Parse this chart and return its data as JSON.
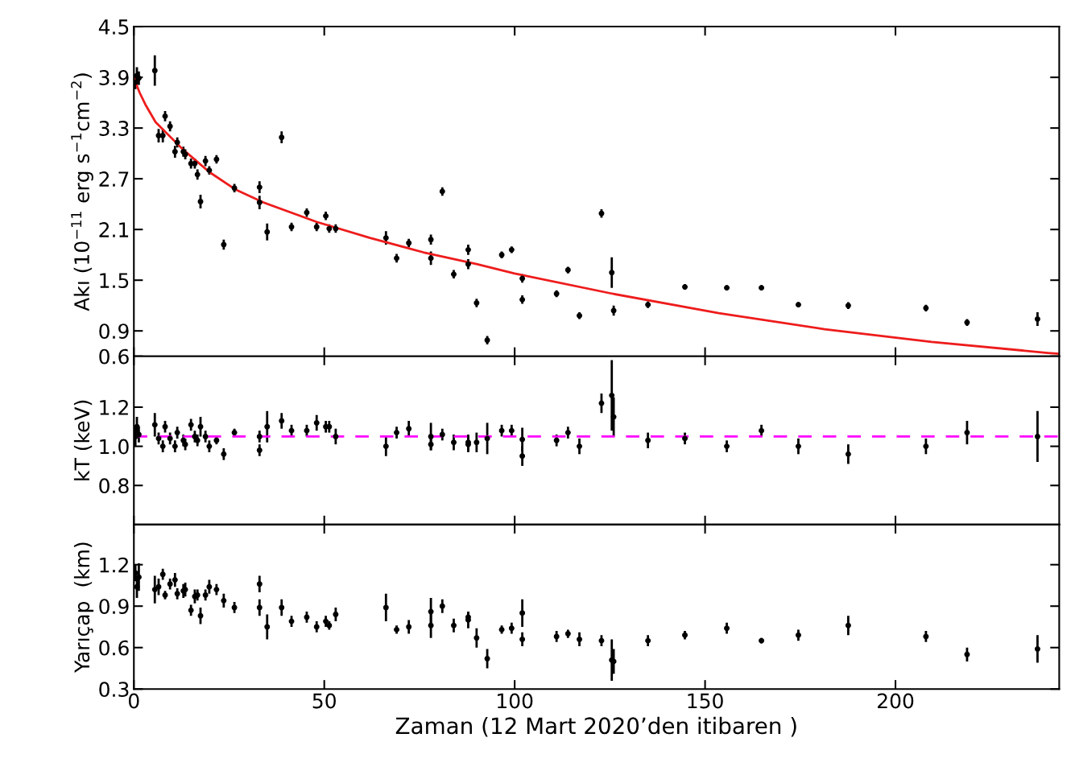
{
  "chart_data": [
    {
      "type": "scatter",
      "ylabel": "Akı (10$^{−11}$ erg s$^{−1}$cm$^{−2}$)",
      "xlim": [
        0,
        243
      ],
      "xticks": [
        0,
        50,
        100,
        150,
        200
      ],
      "ylim": [
        0.6,
        4.5
      ],
      "yticks": [
        0.6,
        0.9,
        1.5,
        2.1,
        2.7,
        3.3,
        3.9,
        4.5
      ],
      "tick_labels": "y",
      "marker": "circle",
      "series": [
        {
          "color": "#000000",
          "x": [
            0.4,
            0.8,
            1.3,
            5.5,
            6.5,
            7.6,
            8.2,
            9.5,
            10.8,
            11.4,
            13,
            13.5,
            15,
            16,
            16.7,
            17.5,
            18.8,
            19.8,
            21.7,
            23.6,
            26.4,
            33,
            33,
            35,
            38.8,
            41.4,
            45.4,
            48,
            50.4,
            51.3,
            53,
            66.2,
            69,
            72.2,
            78,
            78,
            81,
            84,
            87.8,
            87.8,
            90,
            92.8,
            96.6,
            99.2,
            102,
            102,
            111,
            114,
            117,
            122.8,
            125.5,
            126,
            135,
            144.7,
            155.7,
            164.8,
            174.5,
            187.6,
            208,
            218.8,
            237.3
          ],
          "values": [
            3.84,
            3.92,
            3.89,
            3.98,
            3.21,
            3.21,
            3.44,
            3.32,
            3.02,
            3.13,
            3.02,
            2.99,
            2.88,
            2.88,
            2.75,
            2.43,
            2.91,
            2.8,
            2.93,
            1.92,
            2.59,
            2.6,
            2.42,
            2.07,
            3.19,
            2.13,
            2.3,
            2.13,
            2.26,
            2.11,
            2.11,
            2.0,
            1.76,
            1.94,
            1.98,
            1.76,
            2.55,
            1.57,
            1.86,
            1.69,
            1.23,
            0.79,
            1.8,
            1.86,
            1.52,
            1.27,
            1.34,
            1.62,
            1.08,
            2.29,
            1.59,
            1.14,
            1.21,
            1.42,
            1.41,
            1.41,
            1.21,
            1.2,
            1.17,
            1.0,
            1.04
          ],
          "errors": [
            0.08,
            0.1,
            0.08,
            0.18,
            0.08,
            0.08,
            0.06,
            0.06,
            0.07,
            0.06,
            0.06,
            0.06,
            0.06,
            0.06,
            0.06,
            0.08,
            0.06,
            0.05,
            0.05,
            0.06,
            0.05,
            0.07,
            0.08,
            0.1,
            0.07,
            0.05,
            0.05,
            0.05,
            0.05,
            0.05,
            0.05,
            0.08,
            0.05,
            0.05,
            0.06,
            0.08,
            0.05,
            0.05,
            0.06,
            0.06,
            0.05,
            0.05,
            0.04,
            0.04,
            0.05,
            0.05,
            0.04,
            0.04,
            0.04,
            0.05,
            0.18,
            0.06,
            0.04,
            0.03,
            0.03,
            0.03,
            0.03,
            0.04,
            0.04,
            0.04,
            0.08
          ]
        },
        {
          "type": "line",
          "marker": "none",
          "color": "#ee1c1c",
          "x": [
            0,
            0.2,
            1.5,
            3,
            5.7,
            12.8,
            19.8,
            26.8,
            34,
            48,
            62,
            76,
            90,
            100,
            125.7,
            153.6,
            181.4,
            209.5,
            240,
            243
          ],
          "values": [
            3.9,
            3.87,
            3.72,
            3.58,
            3.37,
            3.05,
            2.78,
            2.57,
            2.42,
            2.19,
            2.0,
            1.83,
            1.69,
            1.58,
            1.34,
            1.11,
            0.92,
            0.77,
            0.64,
            0.63
          ]
        }
      ]
    },
    {
      "type": "scatter",
      "ylabel": "kT (keV)",
      "xlim": [
        0,
        243
      ],
      "xticks": [
        0,
        50,
        100,
        150,
        200
      ],
      "ylim": [
        0.6,
        1.46
      ],
      "yticks": [
        0.8,
        {
          "value": 1.0,
          "label": "1.0"
        },
        1.2
      ],
      "tick_labels": "y",
      "marker": "circle",
      "ref_lines": [
        {
          "axis": "y",
          "value": 1.05,
          "color": "#ff00ff",
          "line_style": "dashed"
        }
      ],
      "series": [
        {
          "color": "#000000",
          "x": [
            0.4,
            0.8,
            1.3,
            5.5,
            6.5,
            7.6,
            8.2,
            9.5,
            10.8,
            11.4,
            13,
            13.5,
            15,
            16,
            16.7,
            17.5,
            18.8,
            19.8,
            21.7,
            23.6,
            26.4,
            33,
            33,
            35,
            38.8,
            41.4,
            45.4,
            48,
            50.4,
            51.3,
            53,
            66.2,
            69,
            72.2,
            78,
            78,
            81,
            84,
            87.8,
            87.8,
            90,
            92.8,
            96.6,
            99.2,
            102,
            102,
            111,
            114,
            117,
            122.8,
            125.5,
            126,
            135,
            144.7,
            155.7,
            164.8,
            174.5,
            187.6,
            208,
            218.8,
            237.3
          ],
          "values": [
            1.05,
            1.1,
            1.06,
            1.11,
            1.04,
            1.0,
            1.1,
            1.04,
            1.0,
            1.07,
            1.03,
            1.01,
            1.11,
            1.05,
            1.03,
            1.1,
            1.05,
            1.0,
            1.03,
            0.96,
            1.07,
            1.05,
            0.98,
            1.1,
            1.13,
            1.08,
            1.08,
            1.12,
            1.1,
            1.1,
            1.05,
            1.0,
            1.07,
            1.09,
            1.05,
            1.01,
            1.06,
            1.02,
            1.02,
            1.01,
            1.02,
            1.04,
            1.08,
            1.08,
            1.035,
            0.95,
            1.03,
            1.07,
            1.0,
            1.22,
            1.26,
            1.15,
            1.03,
            1.04,
            1.0,
            1.08,
            1.0,
            0.96,
            1.0,
            1.07,
            1.05
          ],
          "errors": [
            0.05,
            0.05,
            0.04,
            0.06,
            0.03,
            0.03,
            0.03,
            0.03,
            0.03,
            0.03,
            0.03,
            0.03,
            0.03,
            0.03,
            0.03,
            0.05,
            0.03,
            0.03,
            0.02,
            0.03,
            0.02,
            0.03,
            0.03,
            0.08,
            0.04,
            0.03,
            0.03,
            0.04,
            0.03,
            0.03,
            0.04,
            0.05,
            0.03,
            0.04,
            0.07,
            0.03,
            0.03,
            0.04,
            0.04,
            0.04,
            0.05,
            0.08,
            0.03,
            0.03,
            0.06,
            0.05,
            0.03,
            0.03,
            0.04,
            0.05,
            0.18,
            0.1,
            0.04,
            0.03,
            0.03,
            0.03,
            0.04,
            0.05,
            0.04,
            0.06,
            0.13
          ]
        }
      ]
    },
    {
      "type": "scatter",
      "ylabel": "Yarıçap  (km)",
      "xlabel": "Zaman (12 Mart 2020’den itibaren )",
      "xlim": [
        0,
        243
      ],
      "xticks": [
        0,
        50,
        100,
        150,
        200
      ],
      "ylim": [
        0.3,
        1.49
      ],
      "yticks": [
        0.3,
        0.6,
        0.9,
        1.2
      ],
      "marker": "circle",
      "series": [
        {
          "color": "#000000",
          "x": [
            0.4,
            0.8,
            1.3,
            5.5,
            6.5,
            7.6,
            8.2,
            9.5,
            10.8,
            11.4,
            13,
            13.5,
            15,
            16,
            16.7,
            17.5,
            18.8,
            19.8,
            21.7,
            23.6,
            26.4,
            33,
            33,
            35,
            38.8,
            41.4,
            45.4,
            48,
            50.4,
            51.3,
            53,
            66.2,
            69,
            72.2,
            78,
            78,
            81,
            84,
            87.8,
            87.8,
            90,
            92.8,
            96.6,
            99.2,
            102,
            102,
            111,
            114,
            117,
            122.8,
            125.5,
            126,
            135,
            144.7,
            155.7,
            164.8,
            174.5,
            187.6,
            208,
            218.8,
            237.3
          ],
          "values": [
            1.14,
            1.04,
            1.11,
            1.02,
            1.04,
            1.13,
            0.98,
            1.06,
            1.09,
            0.99,
            1.01,
            1.02,
            0.87,
            0.97,
            0.98,
            0.83,
            0.98,
            1.04,
            1.02,
            0.94,
            0.89,
            1.06,
            0.89,
            0.75,
            0.89,
            0.79,
            0.82,
            0.75,
            0.79,
            0.76,
            0.84,
            0.89,
            0.73,
            0.75,
            0.86,
            0.76,
            0.9,
            0.76,
            0.8,
            0.82,
            0.67,
            0.52,
            0.73,
            0.74,
            0.85,
            0.66,
            0.68,
            0.7,
            0.66,
            0.65,
            0.51,
            0.5,
            0.65,
            0.69,
            0.74,
            0.65,
            0.69,
            0.76,
            0.68,
            0.55,
            0.59
          ],
          "errors": [
            0.06,
            0.08,
            0.1,
            0.1,
            0.06,
            0.04,
            0.03,
            0.04,
            0.05,
            0.04,
            0.05,
            0.05,
            0.04,
            0.05,
            0.04,
            0.06,
            0.04,
            0.05,
            0.04,
            0.05,
            0.04,
            0.06,
            0.06,
            0.09,
            0.06,
            0.04,
            0.04,
            0.04,
            0.04,
            0.03,
            0.05,
            0.1,
            0.03,
            0.05,
            0.1,
            0.09,
            0.05,
            0.05,
            0.06,
            0.04,
            0.07,
            0.07,
            0.03,
            0.04,
            0.1,
            0.05,
            0.04,
            0.03,
            0.05,
            0.04,
            0.15,
            0.09,
            0.04,
            0.03,
            0.04,
            0.02,
            0.04,
            0.07,
            0.04,
            0.05,
            0.1
          ]
        }
      ]
    }
  ]
}
